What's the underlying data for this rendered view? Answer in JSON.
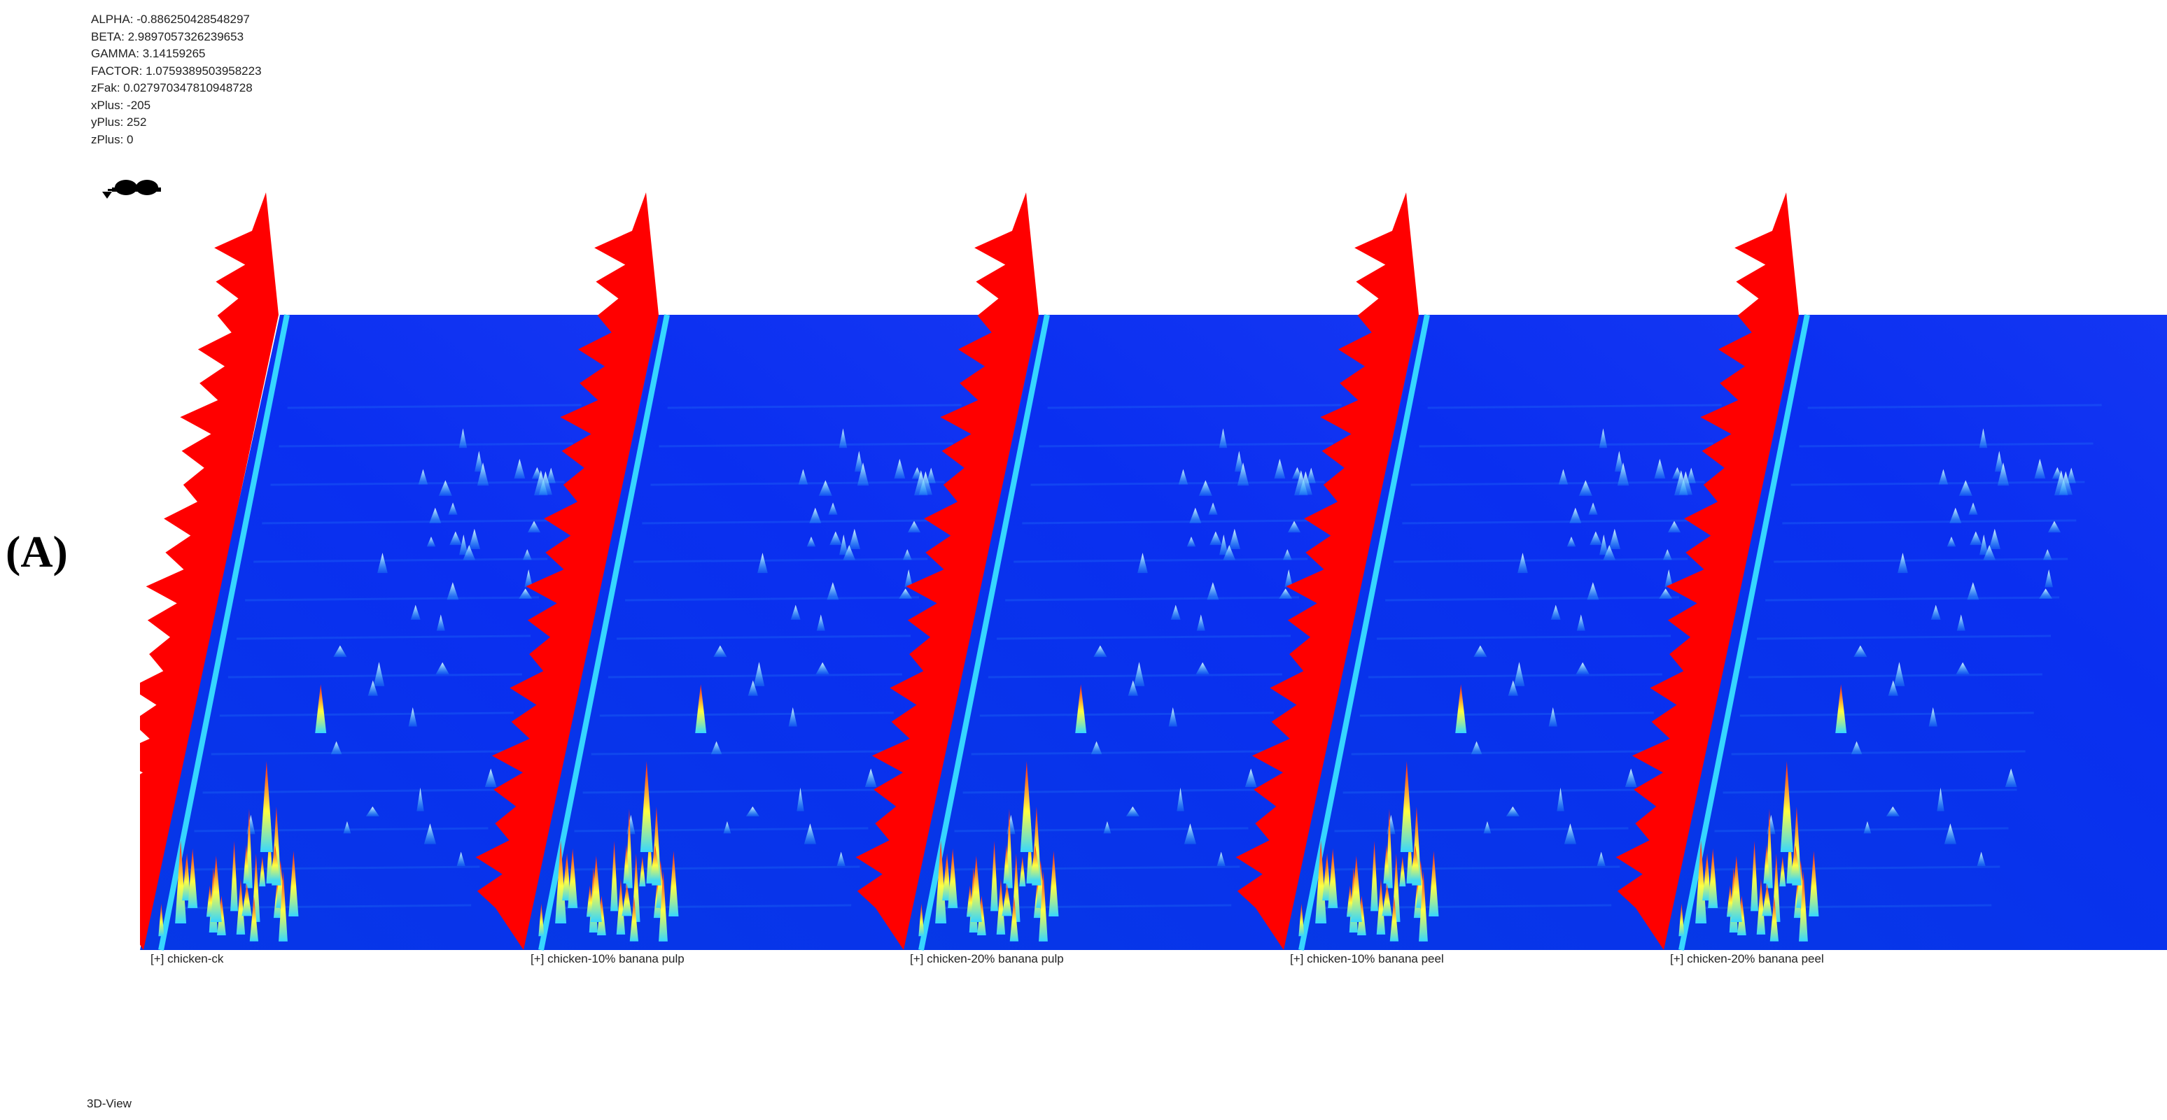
{
  "parameters": [
    {
      "label": "ALPHA",
      "value": "-0.886250428548297"
    },
    {
      "label": "BETA",
      "value": "2.9897057326239653"
    },
    {
      "label": "GAMMA",
      "value": "3.14159265"
    },
    {
      "label": "FACTOR",
      "value": "1.0759389503958223"
    },
    {
      "label": "zFak",
      "value": "0.027970347810948728"
    },
    {
      "label": "xPlus",
      "value": "-205"
    },
    {
      "label": "yPlus",
      "value": "252"
    },
    {
      "label": "zPlus",
      "value": "0"
    }
  ],
  "panel_label": "(A)",
  "samples": [
    {
      "label": "[+] chicken-ck"
    },
    {
      "label": "[+] chicken-10% banana pulp"
    },
    {
      "label": "[+] chicken-20% banana pulp"
    },
    {
      "label": "[+] chicken-10% banana peel"
    },
    {
      "label": "[+] chicken-20% banana peel"
    }
  ],
  "view_mode": "3D-View",
  "colors": {
    "background_plane": "#0a2ff0",
    "reactant_ion_peak": "#ff0000",
    "low_intensity": "#36d6ff",
    "mid_intensity": "#ffff40",
    "high_intensity": "#ff1a1a"
  }
}
